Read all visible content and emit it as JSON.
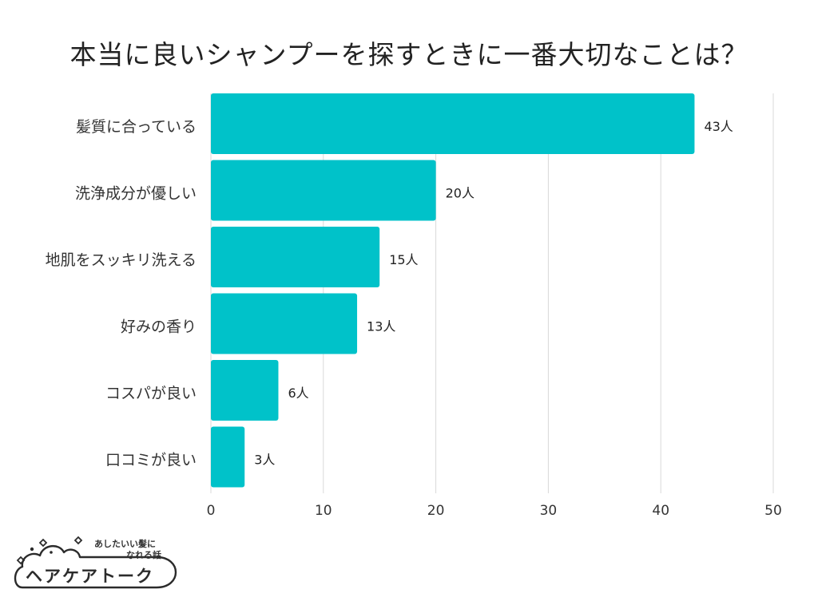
{
  "title": "本当に良いシャンプーを探すときに一番大切なことは？",
  "chart_data": {
    "type": "bar",
    "orientation": "horizontal",
    "title": "本当に良いシャンプーを探すときに一番大切なことは？",
    "categories": [
      "髪質に合っている",
      "洗浄成分が優しい",
      "地肌をスッキリ洗える",
      "好みの香り",
      "コスパが良い",
      "口コミが良い"
    ],
    "values": [
      43,
      20,
      15,
      13,
      6,
      3
    ],
    "value_labels": [
      "43人",
      "20人",
      "15人",
      "13人",
      "6人",
      "3人"
    ],
    "xlim": [
      0,
      50
    ],
    "ticks": [
      "0",
      "10",
      "20",
      "30",
      "40",
      "50"
    ],
    "grid": true,
    "bar_color": "#00c2c9",
    "grid_color": "#d9d9d9",
    "xlabel": "",
    "ylabel": ""
  },
  "logo": {
    "tagline_1": "あしたいい髪に",
    "tagline_2": "なれる話",
    "name": "ヘアケアトーク"
  }
}
